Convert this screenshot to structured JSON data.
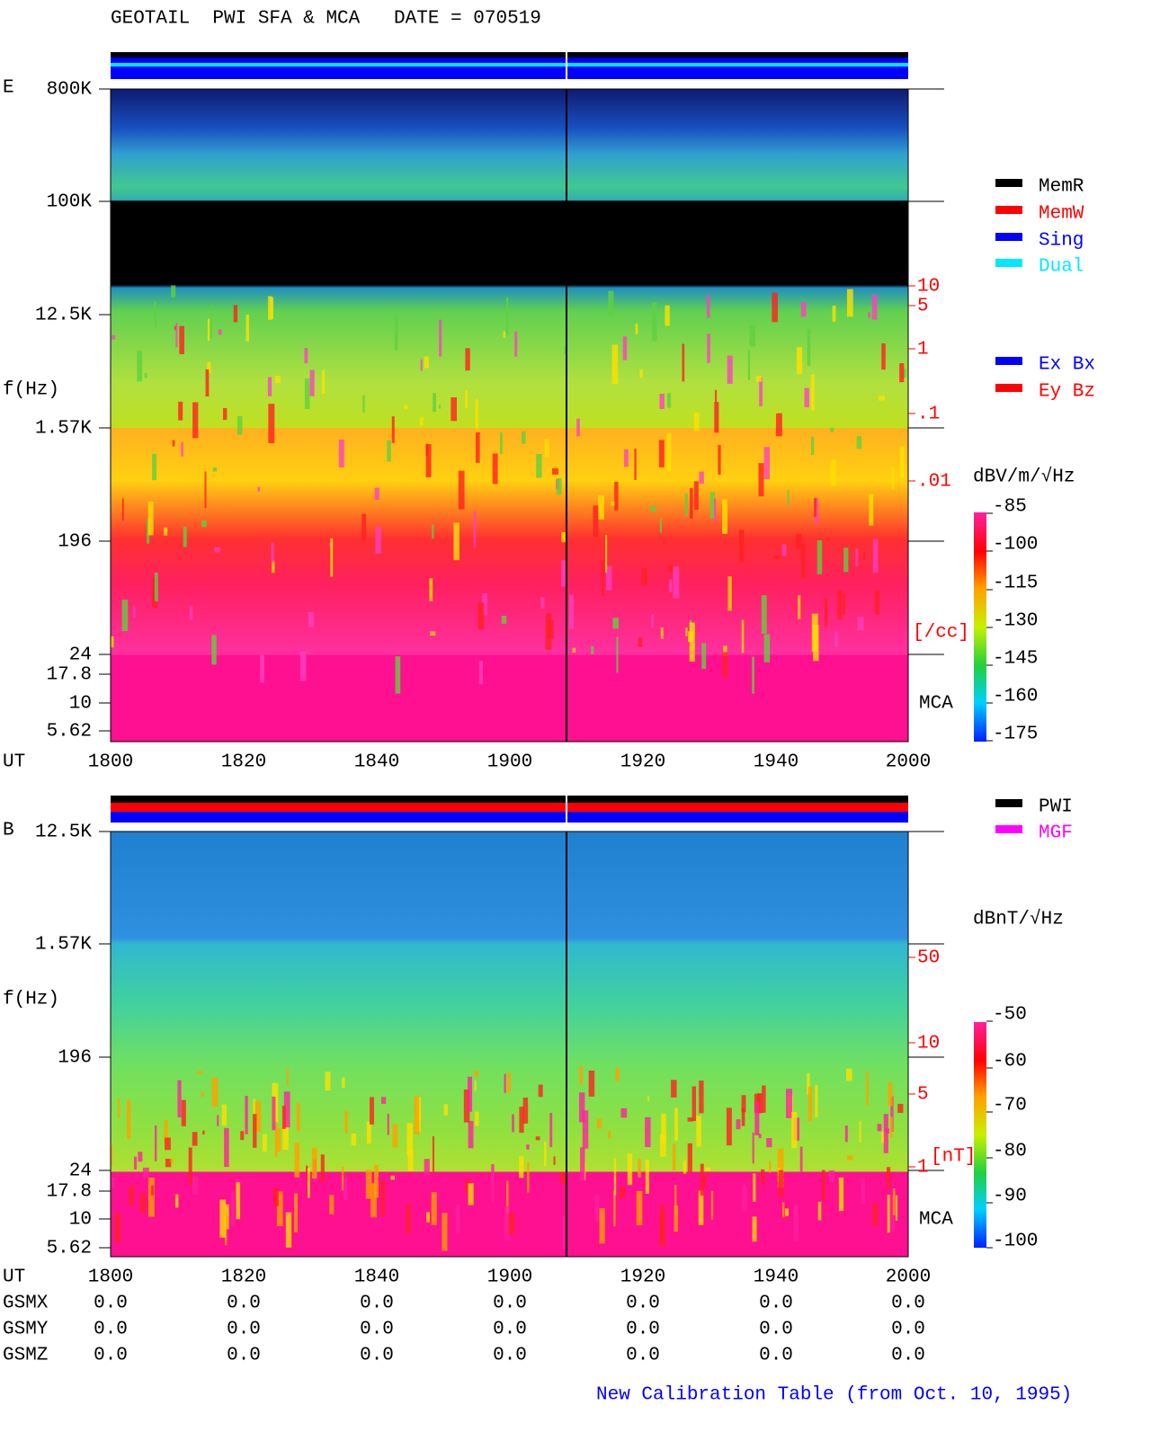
{
  "title": "GEOTAIL  PWI SFA & MCA   DATE = 070519",
  "panels": [
    {
      "label": "E",
      "ylabel": "f(Hz)",
      "xlabel": "UT",
      "freq_ticks": [
        "800K",
        "100K",
        "12.5K",
        "1.57K",
        "196",
        "24",
        "17.8",
        "10",
        "5.62"
      ],
      "x_ticks": [
        "1800",
        "1820",
        "1840",
        "1900",
        "1920",
        "1940",
        "2000"
      ],
      "density_ticks": [
        "10",
        "5",
        "1",
        ".1",
        ".01"
      ],
      "density_unit": "[/cc]",
      "mca": "MCA",
      "colorbar_unit": "dBV/m/√Hz",
      "colorbar_ticks": [
        "-85",
        "-100",
        "-115",
        "-130",
        "-145",
        "-160",
        "-175"
      ],
      "legend": [
        {
          "name": "MemR",
          "color": "#000000"
        },
        {
          "name": "MemW",
          "color": "#ff0000"
        },
        {
          "name": "Sing",
          "color": "#0000ff"
        },
        {
          "name": "Dual",
          "color": "#00e8ff"
        }
      ],
      "legend2": [
        {
          "name": "Ex Bx",
          "color": "#0000ff"
        },
        {
          "name": "Ey Bz",
          "color": "#ff0000"
        }
      ]
    },
    {
      "label": "B",
      "ylabel": "f(Hz)",
      "xlabel": "UT",
      "freq_ticks": [
        "12.5K",
        "1.57K",
        "196",
        "24",
        "17.8",
        "10",
        "5.62"
      ],
      "x_ticks": [
        "1800",
        "1820",
        "1840",
        "1900",
        "1920",
        "1940",
        "2000"
      ],
      "density_ticks": [
        "50",
        "10",
        "5",
        "1"
      ],
      "density_unit": "[nT]",
      "mca": "MCA",
      "colorbar_unit": "dBnT/√Hz",
      "colorbar_ticks": [
        "-50",
        "-60",
        "-70",
        "-80",
        "-90",
        "-100"
      ],
      "legend": [
        {
          "name": "PWI",
          "color": "#000000"
        },
        {
          "name": "MGF",
          "color": "#ff00ff"
        }
      ]
    }
  ],
  "gsm": [
    {
      "label": "GSMX",
      "values": [
        "0.0",
        "0.0",
        "0.0",
        "0.0",
        "0.0",
        "0.0",
        "0.0"
      ]
    },
    {
      "label": "GSMY",
      "values": [
        "0.0",
        "0.0",
        "0.0",
        "0.0",
        "0.0",
        "0.0",
        "0.0"
      ]
    },
    {
      "label": "GSMZ",
      "values": [
        "0.0",
        "0.0",
        "0.0",
        "0.0",
        "0.0",
        "0.0",
        "0.0"
      ]
    }
  ],
  "footer": "New Calibration Table (from Oct. 10, 1995)"
}
